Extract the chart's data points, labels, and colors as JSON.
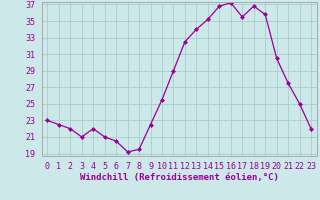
{
  "x": [
    0,
    1,
    2,
    3,
    4,
    5,
    6,
    7,
    8,
    9,
    10,
    11,
    12,
    13,
    14,
    15,
    16,
    17,
    18,
    19,
    20,
    21,
    22,
    23
  ],
  "y": [
    23,
    22.5,
    22,
    21,
    22,
    21,
    20.5,
    19.2,
    19.5,
    22.5,
    25.5,
    29,
    32.5,
    34,
    35.2,
    36.8,
    37.2,
    35.5,
    36.8,
    35.8,
    30.5,
    27.5,
    25,
    22
  ],
  "line_color": "#990099",
  "marker": "D",
  "marker_size": 2.0,
  "bg_color": "#cce8e8",
  "grid_color": "#aacccc",
  "xlabel": "Windchill (Refroidissement éolien,°C)",
  "xlabel_fontsize": 6.5,
  "tick_fontsize": 6.0,
  "ylim_min": 19,
  "ylim_max": 37,
  "yticks": [
    19,
    21,
    23,
    25,
    27,
    29,
    31,
    33,
    35,
    37
  ],
  "xlim_min": -0.5,
  "xlim_max": 23.5,
  "xticks": [
    0,
    1,
    2,
    3,
    4,
    5,
    6,
    7,
    8,
    9,
    10,
    11,
    12,
    13,
    14,
    15,
    16,
    17,
    18,
    19,
    20,
    21,
    22,
    23
  ],
  "spine_color": "#aaaaaa",
  "label_color": "#990099"
}
